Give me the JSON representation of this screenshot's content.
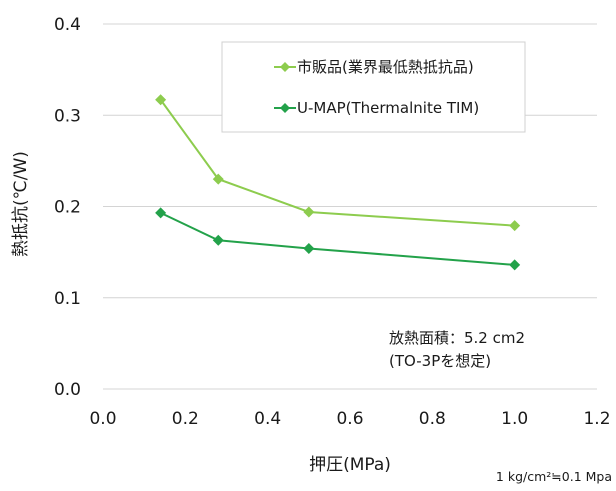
{
  "chart_data": {
    "type": "line",
    "xlabel": "押圧(MPa)",
    "ylabel": "熱抵抗(℃/W)",
    "xlim": [
      0.0,
      1.2
    ],
    "ylim": [
      0.0,
      0.4
    ],
    "x_ticks": [
      "0.0",
      "0.2",
      "0.4",
      "0.6",
      "0.8",
      "1.0",
      "1.2"
    ],
    "y_ticks": [
      "0.0",
      "0.1",
      "0.2",
      "0.3",
      "0.4"
    ],
    "grid": "horizontal",
    "legend_position": "top-right",
    "series": [
      {
        "name": "市販品(業界最低熱抵抗品)",
        "color": "#8dcc4e",
        "marker": "diamond",
        "x": [
          0.14,
          0.28,
          0.5,
          1.0
        ],
        "y": [
          0.317,
          0.23,
          0.194,
          0.179
        ]
      },
      {
        "name": "U-MAP(Thermalnite TIM)",
        "color": "#23a24a",
        "marker": "diamond",
        "x": [
          0.14,
          0.28,
          0.5,
          1.0
        ],
        "y": [
          0.193,
          0.163,
          0.154,
          0.136
        ]
      }
    ],
    "annotation_lines": [
      "放熱面積：5.2 cm2",
      "(TO-3Pを想定)"
    ],
    "note": "1 kg/cm²≒0.1 Mpa"
  }
}
